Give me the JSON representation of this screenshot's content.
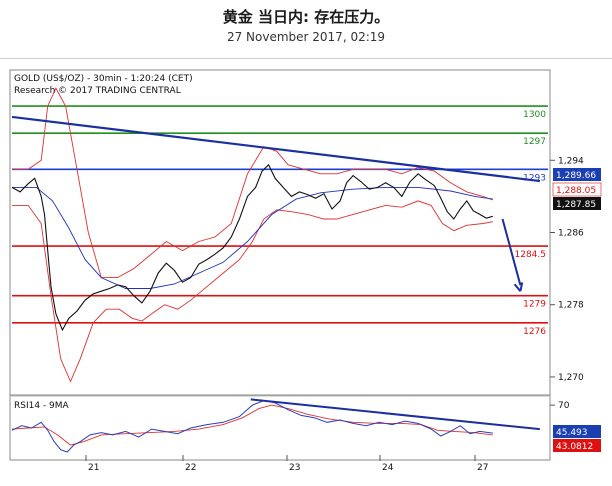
{
  "header": {
    "title": "黄金 当日内: 存在压力。",
    "subtitle": "27 November 2017, 02:19"
  },
  "chart_data": {
    "type": "line",
    "instrument_label": "GOLD (US$/OZ) - 30min - 1:20:24 (CET)",
    "source_label": "Research © 2017 TRADING CENTRAL",
    "price_ylim": [
      1268,
      1304
    ],
    "price_ticks": [
      {
        "v": 1294,
        "t": "1,294"
      },
      {
        "v": 1286,
        "t": "1,286"
      },
      {
        "v": 1278,
        "t": "1,278"
      },
      {
        "v": 1270,
        "t": "1,270"
      }
    ],
    "x_ticks": [
      "21",
      "22",
      "23",
      "24",
      "27"
    ],
    "levels": [
      {
        "value": 1300,
        "label": "1300",
        "color": "#1f8f1f"
      },
      {
        "value": 1297,
        "label": "1297",
        "color": "#1f8f1f"
      },
      {
        "value": 1293,
        "label": "1293",
        "color": "#1f3fd0"
      },
      {
        "value": 1284.5,
        "label": "1284.5",
        "color": "#dd1111"
      },
      {
        "value": 1279,
        "label": "1279",
        "color": "#dd1111"
      },
      {
        "value": 1276,
        "label": "1276",
        "color": "#dd1111"
      }
    ],
    "price_tags": [
      {
        "value": 1289.66,
        "label": "1,289.66",
        "bg": "#1a3fb0",
        "fg": "#ffffff"
      },
      {
        "value": 1288.05,
        "label": "1,288.05",
        "bg": "#ffffff",
        "fg": "#dd1111"
      },
      {
        "value": 1287.85,
        "label": "1,287.85",
        "bg": "#111111",
        "fg": "#ffffff"
      }
    ],
    "price_series": [
      {
        "x": 0,
        "y": 1291
      },
      {
        "x": 5,
        "y": 1290.5
      },
      {
        "x": 10,
        "y": 1291.4
      },
      {
        "x": 14,
        "y": 1292
      },
      {
        "x": 18,
        "y": 1290
      },
      {
        "x": 20,
        "y": 1288
      },
      {
        "x": 22,
        "y": 1284
      },
      {
        "x": 24,
        "y": 1280
      },
      {
        "x": 27,
        "y": 1277
      },
      {
        "x": 31,
        "y": 1275.2
      },
      {
        "x": 35,
        "y": 1276.5
      },
      {
        "x": 40,
        "y": 1277.3
      },
      {
        "x": 45,
        "y": 1278.5
      },
      {
        "x": 50,
        "y": 1279.2
      },
      {
        "x": 55,
        "y": 1279.5
      },
      {
        "x": 60,
        "y": 1279.8
      },
      {
        "x": 65,
        "y": 1280.2
      },
      {
        "x": 70,
        "y": 1280
      },
      {
        "x": 75,
        "y": 1279
      },
      {
        "x": 80,
        "y": 1278.2
      },
      {
        "x": 85,
        "y": 1279.5
      },
      {
        "x": 90,
        "y": 1281.5
      },
      {
        "x": 95,
        "y": 1282.6
      },
      {
        "x": 100,
        "y": 1281.8
      },
      {
        "x": 105,
        "y": 1280.5
      },
      {
        "x": 110,
        "y": 1281
      },
      {
        "x": 115,
        "y": 1282.5
      },
      {
        "x": 120,
        "y": 1283
      },
      {
        "x": 125,
        "y": 1283.6
      },
      {
        "x": 130,
        "y": 1284.3
      },
      {
        "x": 135,
        "y": 1285.5
      },
      {
        "x": 140,
        "y": 1287.5
      },
      {
        "x": 145,
        "y": 1290
      },
      {
        "x": 150,
        "y": 1291
      },
      {
        "x": 154,
        "y": 1292.8
      },
      {
        "x": 158,
        "y": 1293.5
      },
      {
        "x": 162,
        "y": 1292
      },
      {
        "x": 167,
        "y": 1291
      },
      {
        "x": 172,
        "y": 1290
      },
      {
        "x": 177,
        "y": 1290.5
      },
      {
        "x": 182,
        "y": 1290.2
      },
      {
        "x": 187,
        "y": 1289.8
      },
      {
        "x": 192,
        "y": 1290.3
      },
      {
        "x": 197,
        "y": 1288.6
      },
      {
        "x": 202,
        "y": 1289.5
      },
      {
        "x": 206,
        "y": 1291.5
      },
      {
        "x": 210,
        "y": 1292.3
      },
      {
        "x": 215,
        "y": 1291.6
      },
      {
        "x": 220,
        "y": 1290.8
      },
      {
        "x": 225,
        "y": 1291
      },
      {
        "x": 230,
        "y": 1291.5
      },
      {
        "x": 235,
        "y": 1291
      },
      {
        "x": 240,
        "y": 1290
      },
      {
        "x": 245,
        "y": 1291.6
      },
      {
        "x": 250,
        "y": 1292.5
      },
      {
        "x": 255,
        "y": 1291.8
      },
      {
        "x": 260,
        "y": 1291.2
      },
      {
        "x": 264,
        "y": 1289.8
      },
      {
        "x": 268,
        "y": 1288.3
      },
      {
        "x": 272,
        "y": 1287.5
      },
      {
        "x": 276,
        "y": 1288.6
      },
      {
        "x": 280,
        "y": 1289.5
      },
      {
        "x": 284,
        "y": 1288.4
      },
      {
        "x": 288,
        "y": 1288
      },
      {
        "x": 292,
        "y": 1287.6
      },
      {
        "x": 296,
        "y": 1287.8
      }
    ],
    "upper_band": [
      {
        "x": 0,
        "y": 1293
      },
      {
        "x": 10,
        "y": 1293
      },
      {
        "x": 18,
        "y": 1294
      },
      {
        "x": 22,
        "y": 1300
      },
      {
        "x": 27,
        "y": 1302
      },
      {
        "x": 33,
        "y": 1300
      },
      {
        "x": 40,
        "y": 1293
      },
      {
        "x": 47,
        "y": 1286
      },
      {
        "x": 55,
        "y": 1281
      },
      {
        "x": 65,
        "y": 1281
      },
      {
        "x": 75,
        "y": 1282
      },
      {
        "x": 85,
        "y": 1283.5
      },
      {
        "x": 95,
        "y": 1285
      },
      {
        "x": 105,
        "y": 1284
      },
      {
        "x": 115,
        "y": 1285
      },
      {
        "x": 125,
        "y": 1285.5
      },
      {
        "x": 135,
        "y": 1287
      },
      {
        "x": 145,
        "y": 1292.5
      },
      {
        "x": 155,
        "y": 1295.5
      },
      {
        "x": 163,
        "y": 1295
      },
      {
        "x": 170,
        "y": 1293.5
      },
      {
        "x": 180,
        "y": 1293
      },
      {
        "x": 190,
        "y": 1292.5
      },
      {
        "x": 200,
        "y": 1292.5
      },
      {
        "x": 210,
        "y": 1293
      },
      {
        "x": 220,
        "y": 1293
      },
      {
        "x": 230,
        "y": 1293
      },
      {
        "x": 240,
        "y": 1292.5
      },
      {
        "x": 250,
        "y": 1293.2
      },
      {
        "x": 260,
        "y": 1292.8
      },
      {
        "x": 270,
        "y": 1291.5
      },
      {
        "x": 280,
        "y": 1290.5
      },
      {
        "x": 290,
        "y": 1290
      },
      {
        "x": 296,
        "y": 1289.6
      }
    ],
    "lower_band": [
      {
        "x": 0,
        "y": 1289
      },
      {
        "x": 10,
        "y": 1289
      },
      {
        "x": 18,
        "y": 1287
      },
      {
        "x": 24,
        "y": 1279
      },
      {
        "x": 30,
        "y": 1272
      },
      {
        "x": 36,
        "y": 1269.5
      },
      {
        "x": 42,
        "y": 1272
      },
      {
        "x": 50,
        "y": 1276
      },
      {
        "x": 58,
        "y": 1277.5
      },
      {
        "x": 66,
        "y": 1277.5
      },
      {
        "x": 74,
        "y": 1276.5
      },
      {
        "x": 80,
        "y": 1276.2
      },
      {
        "x": 86,
        "y": 1277
      },
      {
        "x": 94,
        "y": 1278
      },
      {
        "x": 102,
        "y": 1277.5
      },
      {
        "x": 110,
        "y": 1278.5
      },
      {
        "x": 120,
        "y": 1280
      },
      {
        "x": 130,
        "y": 1281.5
      },
      {
        "x": 140,
        "y": 1283
      },
      {
        "x": 148,
        "y": 1285
      },
      {
        "x": 155,
        "y": 1287.5
      },
      {
        "x": 163,
        "y": 1288.5
      },
      {
        "x": 172,
        "y": 1288.3
      },
      {
        "x": 182,
        "y": 1288
      },
      {
        "x": 192,
        "y": 1287.5
      },
      {
        "x": 200,
        "y": 1287.5
      },
      {
        "x": 210,
        "y": 1288
      },
      {
        "x": 220,
        "y": 1288.5
      },
      {
        "x": 230,
        "y": 1289
      },
      {
        "x": 240,
        "y": 1288.8
      },
      {
        "x": 250,
        "y": 1289.5
      },
      {
        "x": 258,
        "y": 1289
      },
      {
        "x": 265,
        "y": 1287
      },
      {
        "x": 272,
        "y": 1286.2
      },
      {
        "x": 280,
        "y": 1286.8
      },
      {
        "x": 290,
        "y": 1287
      },
      {
        "x": 296,
        "y": 1287.2
      }
    ],
    "ma_series": [
      {
        "x": 0,
        "y": 1291
      },
      {
        "x": 15,
        "y": 1291
      },
      {
        "x": 25,
        "y": 1289.5
      },
      {
        "x": 35,
        "y": 1286.5
      },
      {
        "x": 45,
        "y": 1283
      },
      {
        "x": 55,
        "y": 1281
      },
      {
        "x": 70,
        "y": 1279.8
      },
      {
        "x": 85,
        "y": 1279.8
      },
      {
        "x": 100,
        "y": 1280.3
      },
      {
        "x": 115,
        "y": 1281.5
      },
      {
        "x": 130,
        "y": 1282.7
      },
      {
        "x": 145,
        "y": 1285
      },
      {
        "x": 160,
        "y": 1288
      },
      {
        "x": 175,
        "y": 1289.7
      },
      {
        "x": 190,
        "y": 1290.4
      },
      {
        "x": 210,
        "y": 1290.8
      },
      {
        "x": 230,
        "y": 1291
      },
      {
        "x": 250,
        "y": 1291
      },
      {
        "x": 270,
        "y": 1290.6
      },
      {
        "x": 285,
        "y": 1290
      },
      {
        "x": 296,
        "y": 1289.7
      }
    ],
    "trendline": {
      "x0": 0,
      "y0": 1298.8,
      "x1": 325,
      "y1": 1291.7
    },
    "arrow": {
      "x0": 302,
      "y0": 1287.5,
      "x1": 313,
      "y1": 1279.5
    },
    "rsi": {
      "label": "RSI14 - 9MA",
      "ylim": [
        22,
        78
      ],
      "tick": {
        "v": 70,
        "t": "70"
      },
      "value_tags": [
        {
          "value": 45.493,
          "label": "45.493",
          "bg": "#1a3fb0",
          "fg": "#ffffff"
        },
        {
          "value": 43.0812,
          "label": "43.0812",
          "bg": "#dd1111",
          "fg": "#ffffff"
        }
      ],
      "rsi_series": [
        {
          "x": 0,
          "y": 48
        },
        {
          "x": 6,
          "y": 52
        },
        {
          "x": 12,
          "y": 50
        },
        {
          "x": 18,
          "y": 55
        },
        {
          "x": 22,
          "y": 48
        },
        {
          "x": 26,
          "y": 38
        },
        {
          "x": 30,
          "y": 31
        },
        {
          "x": 34,
          "y": 29
        },
        {
          "x": 38,
          "y": 35
        },
        {
          "x": 42,
          "y": 38
        },
        {
          "x": 48,
          "y": 44
        },
        {
          "x": 55,
          "y": 46
        },
        {
          "x": 62,
          "y": 44
        },
        {
          "x": 70,
          "y": 47
        },
        {
          "x": 78,
          "y": 42
        },
        {
          "x": 86,
          "y": 49
        },
        {
          "x": 94,
          "y": 47
        },
        {
          "x": 102,
          "y": 45
        },
        {
          "x": 110,
          "y": 50
        },
        {
          "x": 120,
          "y": 53
        },
        {
          "x": 130,
          "y": 55
        },
        {
          "x": 140,
          "y": 60
        },
        {
          "x": 148,
          "y": 70
        },
        {
          "x": 155,
          "y": 74
        },
        {
          "x": 162,
          "y": 72
        },
        {
          "x": 170,
          "y": 66
        },
        {
          "x": 178,
          "y": 61
        },
        {
          "x": 186,
          "y": 59
        },
        {
          "x": 194,
          "y": 55
        },
        {
          "x": 202,
          "y": 57
        },
        {
          "x": 210,
          "y": 54
        },
        {
          "x": 218,
          "y": 52
        },
        {
          "x": 226,
          "y": 55
        },
        {
          "x": 234,
          "y": 53
        },
        {
          "x": 242,
          "y": 56
        },
        {
          "x": 250,
          "y": 54
        },
        {
          "x": 258,
          "y": 49
        },
        {
          "x": 264,
          "y": 43
        },
        {
          "x": 270,
          "y": 47
        },
        {
          "x": 276,
          "y": 52
        },
        {
          "x": 282,
          "y": 45
        },
        {
          "x": 288,
          "y": 47
        },
        {
          "x": 296,
          "y": 45.5
        }
      ],
      "ma_series": [
        {
          "x": 0,
          "y": 49
        },
        {
          "x": 10,
          "y": 50
        },
        {
          "x": 20,
          "y": 51
        },
        {
          "x": 28,
          "y": 44
        },
        {
          "x": 36,
          "y": 35
        },
        {
          "x": 44,
          "y": 38
        },
        {
          "x": 55,
          "y": 44
        },
        {
          "x": 70,
          "y": 45
        },
        {
          "x": 85,
          "y": 46
        },
        {
          "x": 100,
          "y": 47
        },
        {
          "x": 115,
          "y": 49
        },
        {
          "x": 130,
          "y": 53
        },
        {
          "x": 142,
          "y": 59
        },
        {
          "x": 152,
          "y": 67
        },
        {
          "x": 160,
          "y": 70
        },
        {
          "x": 170,
          "y": 67
        },
        {
          "x": 182,
          "y": 62
        },
        {
          "x": 195,
          "y": 58
        },
        {
          "x": 210,
          "y": 55
        },
        {
          "x": 225,
          "y": 54
        },
        {
          "x": 240,
          "y": 54
        },
        {
          "x": 252,
          "y": 53
        },
        {
          "x": 262,
          "y": 48
        },
        {
          "x": 272,
          "y": 47
        },
        {
          "x": 284,
          "y": 46
        },
        {
          "x": 296,
          "y": 44
        }
      ],
      "trendline": {
        "x0": 147,
        "y0": 75,
        "x1": 325,
        "y1": 49
      }
    },
    "colors": {
      "price": "#111111",
      "bollinger": "#e03030",
      "moving_average": "#2030c0",
      "trendline": "#1a2fa0",
      "rsi": "#2a3fbf",
      "rsi_ma": "#e03030",
      "level_green": "#1f8f1f",
      "level_red": "#dd1111",
      "level_blue": "#1f3fd0"
    }
  }
}
